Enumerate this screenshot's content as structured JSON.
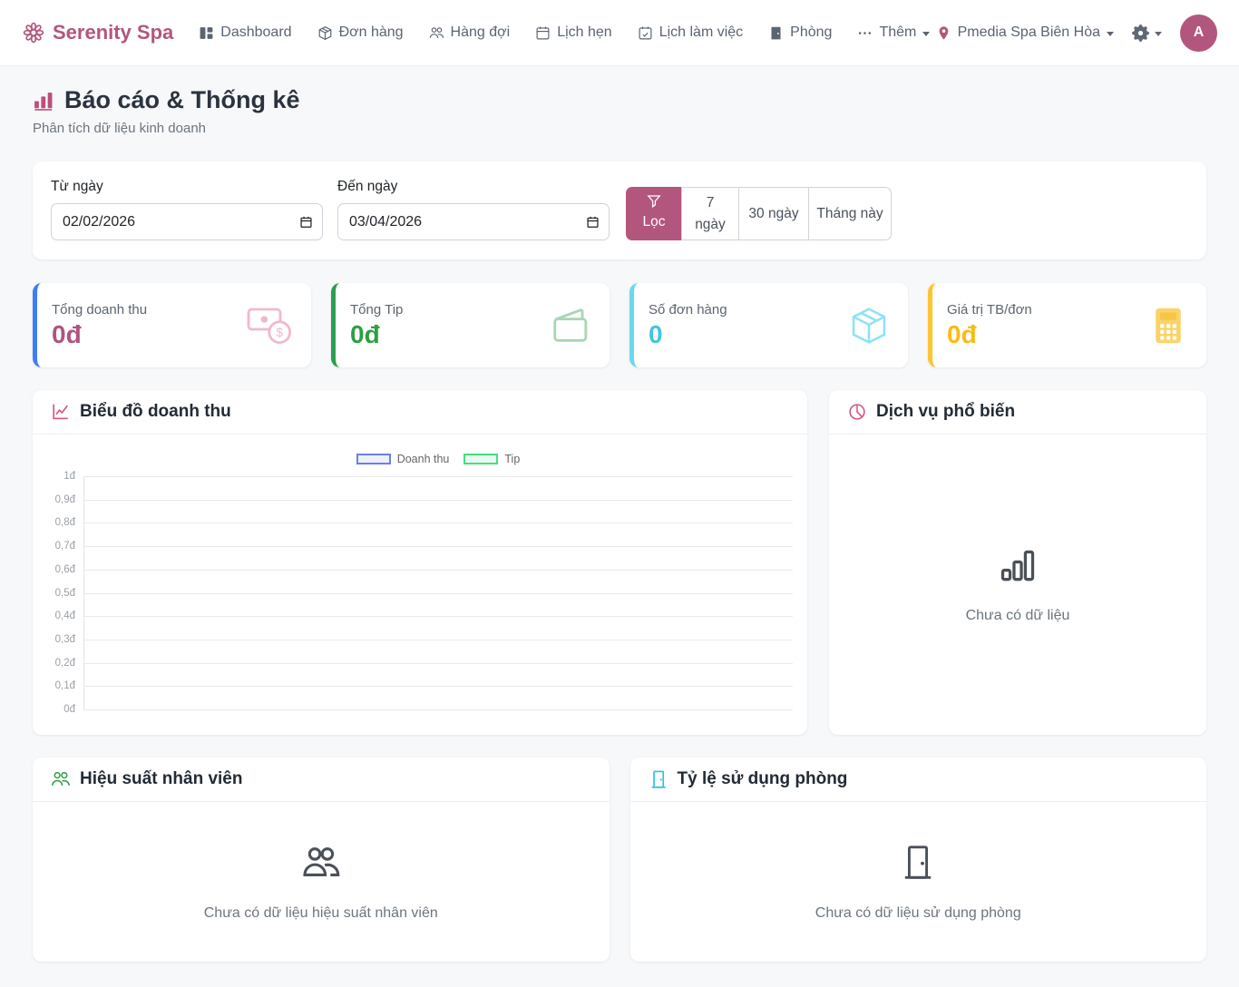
{
  "brand": {
    "name": "Serenity Spa",
    "color": "#b3567d"
  },
  "nav": {
    "items": [
      {
        "label": "Dashboard",
        "icon": "dashboard-icon"
      },
      {
        "label": "Đơn hàng",
        "icon": "package-icon"
      },
      {
        "label": "Hàng đợi",
        "icon": "people-icon"
      },
      {
        "label": "Lịch hẹn",
        "icon": "calendar-icon"
      },
      {
        "label": "Lịch làm việc",
        "icon": "calendar-check-icon"
      },
      {
        "label": "Phòng",
        "icon": "door-icon"
      },
      {
        "label": "Thêm",
        "icon": "dots-icon"
      }
    ],
    "location": {
      "label": "Pmedia Spa Biên Hòa",
      "icon": "pin-icon"
    },
    "avatar": {
      "initial": "A"
    }
  },
  "page": {
    "title": "Báo cáo & Thống kê",
    "subtitle": "Phân tích dữ liệu kinh doanh"
  },
  "filters": {
    "from_label": "Từ ngày",
    "from_value": "02/02/2026",
    "to_label": "Đến ngày",
    "to_value": "03/04/2026",
    "buttons": [
      {
        "label": "Lọc",
        "active": true,
        "icon": "funnel-icon"
      },
      {
        "label": "7 ngày",
        "active": false
      },
      {
        "label": "30 ngày",
        "active": false
      },
      {
        "label": "Tháng này",
        "active": false
      }
    ]
  },
  "stats": [
    {
      "label": "Tổng doanh thu",
      "value": "0đ",
      "accent": "#3d7ef8",
      "value_color": "#b0537f",
      "icon": "cash-icon"
    },
    {
      "label": "Tổng Tip",
      "value": "0đ",
      "accent": "#2d9d50",
      "value_color": "#2f9e44",
      "icon": "wallet-icon"
    },
    {
      "label": "Số đơn hàng",
      "value": "0",
      "accent": "#6ad8ee",
      "value_color": "#41c6e0",
      "icon": "package-icon"
    },
    {
      "label": "Giá trị TB/đơn",
      "value": "0đ",
      "accent": "#fdc530",
      "value_color": "#fdba12",
      "icon": "calculator-icon"
    }
  ],
  "revenue_panel": {
    "title": "Biểu đồ doanh thu",
    "icon": "line-chart-icon"
  },
  "chart_data": {
    "type": "line",
    "title": "Biểu đồ doanh thu",
    "x": [],
    "series": [
      {
        "name": "Doanh thu",
        "color": "#6e7ee6",
        "fill": "#ecf0fc",
        "values": []
      },
      {
        "name": "Tip",
        "color": "#42e080",
        "fill": "#eafaf0",
        "values": []
      }
    ],
    "y_ticks": [
      "1đ",
      "0,9đ",
      "0,8đ",
      "0,7đ",
      "0,6đ",
      "0,5đ",
      "0,4đ",
      "0,3đ",
      "0,2đ",
      "0,1đ",
      "0đ"
    ],
    "ylim": [
      0,
      1
    ],
    "grid": true,
    "legend_position": "top",
    "empty": true
  },
  "services_panel": {
    "title": "Dịch vụ phổ biến",
    "icon": "pie-chart-icon",
    "empty_text": "Chưa có dữ liệu"
  },
  "staff_panel": {
    "title": "Hiệu suất nhân viên",
    "icon": "people-icon",
    "empty_text": "Chưa có dữ liệu hiệu suất nhân viên"
  },
  "rooms_panel": {
    "title": "Tỷ lệ sử dụng phòng",
    "icon": "door-icon",
    "empty_text": "Chưa có dữ liệu sử dụng phòng"
  }
}
